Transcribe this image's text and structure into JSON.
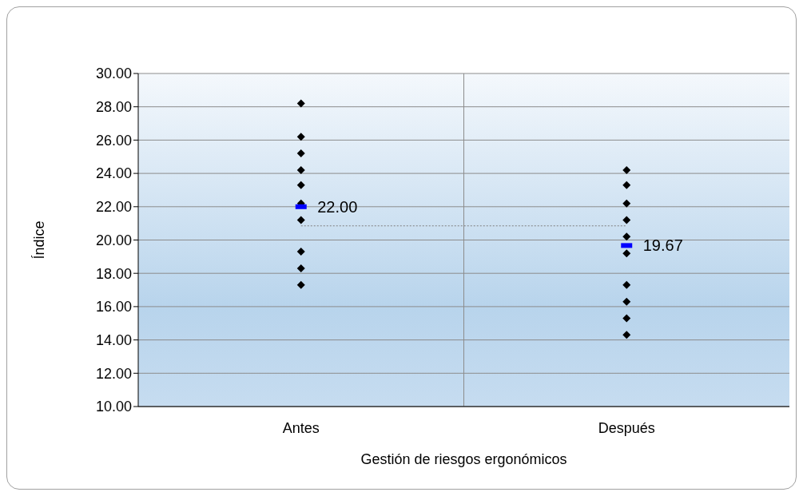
{
  "chart_data": {
    "type": "scatter",
    "xlabel": "Gestión de riesgos ergonómicos",
    "ylabel": "Índice",
    "categories": [
      "Antes",
      "Después"
    ],
    "ylim": [
      10,
      30
    ],
    "yticks": [
      {
        "value": 10,
        "label": "10.00"
      },
      {
        "value": 12,
        "label": "12.00"
      },
      {
        "value": 14,
        "label": "14.00"
      },
      {
        "value": 16,
        "label": "16.00"
      },
      {
        "value": 18,
        "label": "18.00"
      },
      {
        "value": 20,
        "label": "20.00"
      },
      {
        "value": 22,
        "label": "22.00"
      },
      {
        "value": 24,
        "label": "24.00"
      },
      {
        "value": 26,
        "label": "26.00"
      },
      {
        "value": 28,
        "label": "28.00"
      },
      {
        "value": 30,
        "label": "30.00"
      }
    ],
    "grid": true,
    "marker": "diamond",
    "series": [
      {
        "type": "line",
        "marker": "none",
        "color": "#7f7f7f",
        "line_style": "dotted",
        "x": [
          "Antes",
          "Después"
        ],
        "values": [
          20.85,
          20.85
        ]
      },
      {
        "color": "#000000",
        "x": [
          "Antes",
          "Antes",
          "Antes",
          "Antes",
          "Antes",
          "Antes",
          "Antes",
          "Antes",
          "Antes",
          "Antes",
          "Después",
          "Después",
          "Después",
          "Después",
          "Después",
          "Después",
          "Después",
          "Después",
          "Después",
          "Después"
        ],
        "values": [
          28.2,
          26.2,
          25.2,
          24.2,
          23.3,
          22.2,
          21.2,
          19.3,
          18.3,
          17.3,
          24.2,
          23.3,
          22.2,
          21.2,
          20.2,
          19.2,
          17.3,
          16.3,
          15.3,
          14.3
        ]
      },
      {
        "type": "scatter",
        "marker": "square",
        "color": "#0000ff",
        "x": [
          "Antes",
          "Después"
        ],
        "values": [
          22.0,
          19.67
        ],
        "value_labels": [
          "22.00",
          "19.67"
        ]
      }
    ]
  }
}
